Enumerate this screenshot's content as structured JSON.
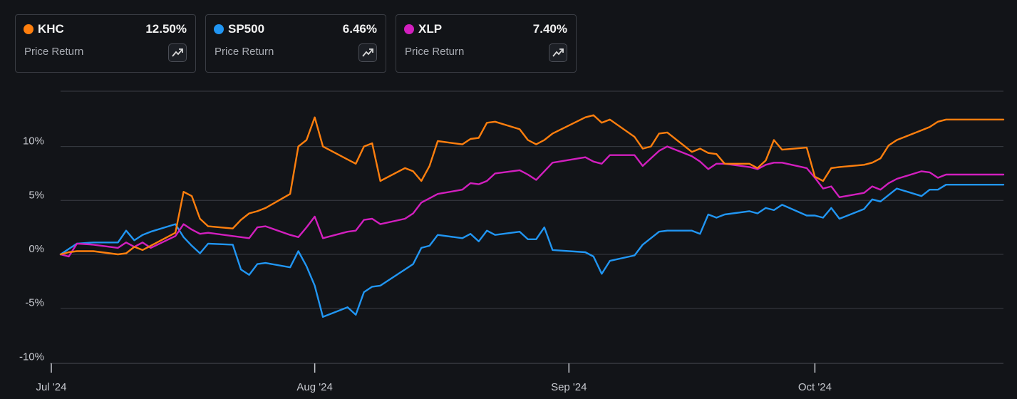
{
  "legend": [
    {
      "ticker": "KHC",
      "value": "12.50%",
      "subtitle": "Price Return",
      "color": "#ff7f0e",
      "icon": "trend-chart-icon"
    },
    {
      "ticker": "SP500",
      "value": "6.46%",
      "subtitle": "Price Return",
      "color": "#2196f3",
      "icon": "trend-chart-icon"
    },
    {
      "ticker": "XLP",
      "value": "7.40%",
      "subtitle": "Price Return",
      "color": "#d21fbe",
      "icon": "trend-chart-icon"
    }
  ],
  "chart_data": {
    "type": "line",
    "title": "",
    "xlabel": "",
    "ylabel": "",
    "ylim": [
      -10,
      15
    ],
    "yticks": [
      -10,
      -5,
      0,
      5,
      10
    ],
    "ytick_labels": [
      "-10%",
      "-5%",
      "0%",
      "5%",
      "10%"
    ],
    "xlim": [
      "2024-07-01",
      "2024-10-24"
    ],
    "xticks": [
      "2024-07-01",
      "2024-08-01",
      "2024-09-01",
      "2024-10-01"
    ],
    "xtick_labels": [
      "Jul '24",
      "Aug '24",
      "Sep '24",
      "Oct '24"
    ],
    "grid": true,
    "x": [
      "2024-07-01",
      "2024-07-02",
      "2024-07-03",
      "2024-07-05",
      "2024-07-08",
      "2024-07-09",
      "2024-07-10",
      "2024-07-11",
      "2024-07-12",
      "2024-07-15",
      "2024-07-16",
      "2024-07-17",
      "2024-07-18",
      "2024-07-19",
      "2024-07-22",
      "2024-07-23",
      "2024-07-24",
      "2024-07-25",
      "2024-07-26",
      "2024-07-29",
      "2024-07-30",
      "2024-07-31",
      "2024-08-01",
      "2024-08-02",
      "2024-08-05",
      "2024-08-06",
      "2024-08-07",
      "2024-08-08",
      "2024-08-09",
      "2024-08-12",
      "2024-08-13",
      "2024-08-14",
      "2024-08-15",
      "2024-08-16",
      "2024-08-19",
      "2024-08-20",
      "2024-08-21",
      "2024-08-22",
      "2024-08-23",
      "2024-08-26",
      "2024-08-27",
      "2024-08-28",
      "2024-08-29",
      "2024-08-30",
      "2024-09-03",
      "2024-09-04",
      "2024-09-05",
      "2024-09-06",
      "2024-09-09",
      "2024-09-10",
      "2024-09-11",
      "2024-09-12",
      "2024-09-13",
      "2024-09-16",
      "2024-09-17",
      "2024-09-18",
      "2024-09-19",
      "2024-09-20",
      "2024-09-23",
      "2024-09-24",
      "2024-09-25",
      "2024-09-26",
      "2024-09-27",
      "2024-09-30",
      "2024-10-01",
      "2024-10-02",
      "2024-10-03",
      "2024-10-04",
      "2024-10-07",
      "2024-10-08",
      "2024-10-09",
      "2024-10-10",
      "2024-10-11",
      "2024-10-14",
      "2024-10-15",
      "2024-10-16",
      "2024-10-17",
      "2024-10-18",
      "2024-10-21",
      "2024-10-22",
      "2024-10-23",
      "2024-10-24"
    ],
    "series": [
      {
        "name": "KHC",
        "color": "#ff7f0e",
        "values": [
          0.0,
          0.2,
          0.3,
          0.3,
          0.0,
          0.1,
          0.7,
          0.4,
          0.8,
          2.0,
          5.8,
          5.4,
          3.3,
          2.6,
          2.4,
          3.2,
          3.8,
          4.0,
          4.3,
          5.6,
          10.0,
          10.6,
          12.7,
          10.0,
          8.8,
          8.4,
          10.0,
          10.3,
          6.8,
          8.0,
          7.7,
          6.8,
          8.2,
          10.5,
          10.2,
          10.7,
          10.8,
          12.2,
          12.3,
          11.6,
          10.6,
          10.2,
          10.6,
          11.2,
          12.7,
          12.9,
          12.2,
          12.5,
          10.9,
          9.8,
          10.0,
          11.2,
          11.3,
          9.5,
          9.8,
          9.4,
          9.3,
          8.4,
          8.4,
          8.0,
          8.7,
          10.6,
          9.7,
          9.9,
          7.2,
          6.8,
          8.0,
          8.1,
          8.3,
          8.5,
          8.9,
          10.1,
          10.6,
          11.5,
          11.8,
          12.3,
          12.5,
          12.5,
          12.5,
          12.5,
          12.5,
          12.5
        ]
      },
      {
        "name": "SP500",
        "color": "#2196f3",
        "values": [
          0.0,
          0.5,
          1.0,
          1.1,
          1.1,
          2.2,
          1.3,
          1.8,
          2.1,
          2.8,
          1.6,
          0.8,
          0.1,
          1.0,
          0.9,
          -1.4,
          -1.9,
          -0.9,
          -0.8,
          -1.2,
          0.3,
          -1.1,
          -2.9,
          -5.8,
          -4.9,
          -5.6,
          -3.5,
          -3.0,
          -2.9,
          -1.4,
          -0.9,
          0.6,
          0.8,
          1.8,
          1.5,
          1.9,
          1.2,
          2.2,
          1.8,
          2.1,
          1.4,
          1.4,
          2.5,
          0.4,
          0.2,
          -0.2,
          -1.8,
          -0.6,
          -0.1,
          0.9,
          1.5,
          2.1,
          2.2,
          2.2,
          1.9,
          3.7,
          3.4,
          3.7,
          4.0,
          3.8,
          4.3,
          4.1,
          4.6,
          3.6,
          3.6,
          3.4,
          4.3,
          3.3,
          4.2,
          5.1,
          4.9,
          5.5,
          6.1,
          5.4,
          6.0,
          6.0,
          6.46,
          6.46,
          6.46,
          6.46,
          6.46,
          6.46
        ]
      },
      {
        "name": "XLP",
        "color": "#d21fbe",
        "values": [
          0.0,
          -0.2,
          1.0,
          0.9,
          0.6,
          1.1,
          0.7,
          1.1,
          0.6,
          1.7,
          2.8,
          2.3,
          1.9,
          2.0,
          1.7,
          1.6,
          1.5,
          2.5,
          2.6,
          1.8,
          1.6,
          2.5,
          3.5,
          1.5,
          2.1,
          2.2,
          3.2,
          3.3,
          2.8,
          3.3,
          3.8,
          4.8,
          5.2,
          5.6,
          6.0,
          6.6,
          6.5,
          6.8,
          7.5,
          7.8,
          7.4,
          6.9,
          7.7,
          8.5,
          9.0,
          8.6,
          8.4,
          9.2,
          9.2,
          8.2,
          8.9,
          9.6,
          10.0,
          9.1,
          8.6,
          7.9,
          8.4,
          8.4,
          8.1,
          7.9,
          8.3,
          8.5,
          8.5,
          8.0,
          7.1,
          6.1,
          6.3,
          5.3,
          5.7,
          6.3,
          6.0,
          6.6,
          7.0,
          7.7,
          7.6,
          7.1,
          7.4,
          7.4,
          7.4,
          7.4,
          7.4,
          7.4
        ]
      }
    ]
  }
}
